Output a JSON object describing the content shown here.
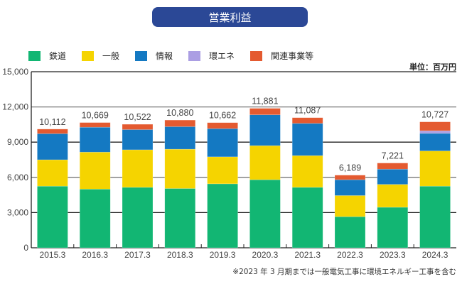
{
  "title": "営業利益",
  "unit_label": "単位：百万円",
  "note": "※2023 年 3 月期までは一般電気工事に環境エネルギー工事を含む",
  "chart_data": {
    "type": "bar",
    "stacked": true,
    "title": "営業利益",
    "xlabel": "",
    "ylabel": "単位：百万円",
    "ylim": [
      0,
      15000
    ],
    "yticks": [
      0,
      3000,
      6000,
      9000,
      12000,
      15000
    ],
    "ytick_labels": [
      "0",
      "3,000",
      "6,000",
      "9,000",
      "12,000",
      "15,000"
    ],
    "grid": true,
    "legend_position": "top-left",
    "categories": [
      "2015.3",
      "2016.3",
      "2017.3",
      "2018.3",
      "2019.3",
      "2020.3",
      "2021.3",
      "2022.3",
      "2023.3",
      "2024.3"
    ],
    "totals": [
      10112,
      10669,
      10522,
      10880,
      10662,
      11881,
      11087,
      6189,
      7221,
      10727
    ],
    "total_labels": [
      "10,112",
      "10,669",
      "10,522",
      "10,880",
      "10,662",
      "11,881",
      "11,087",
      "6,189",
      "7,221",
      "10,727"
    ],
    "series": [
      {
        "name": "鉄道",
        "color": "#12b673",
        "values": [
          5250,
          5000,
          5150,
          5050,
          5450,
          5800,
          5150,
          2650,
          3450,
          5250
        ]
      },
      {
        "name": "一般",
        "color": "#f5d400",
        "values": [
          2250,
          3150,
          3200,
          3350,
          2300,
          2900,
          2700,
          1800,
          1950,
          3000
        ]
      },
      {
        "name": "情報",
        "color": "#1479c2",
        "values": [
          2220,
          2120,
          1720,
          1920,
          2400,
          2630,
          2750,
          1350,
          1300,
          1500
        ]
      },
      {
        "name": "環エネ",
        "color": "#ab9ee3",
        "values": [
          0,
          0,
          0,
          0,
          0,
          0,
          0,
          0,
          0,
          220
        ]
      },
      {
        "name": "関連事業等",
        "color": "#e45a30",
        "values": [
          392,
          399,
          452,
          560,
          512,
          551,
          487,
          389,
          521,
          757
        ]
      }
    ]
  }
}
